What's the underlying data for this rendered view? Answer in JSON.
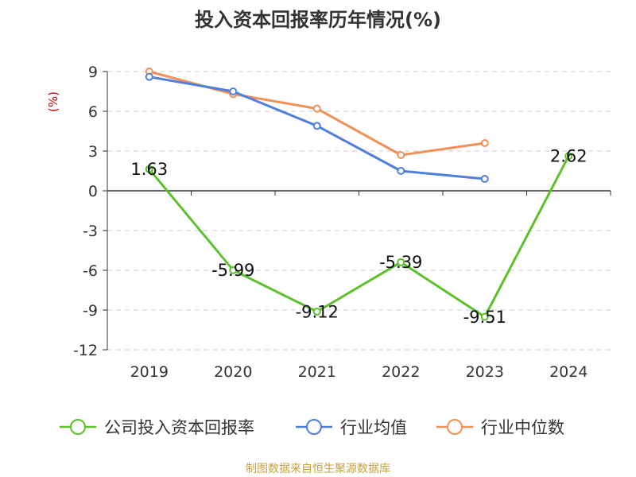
{
  "chart_data": {
    "type": "line",
    "title": "投入资本回报率历年情况(%)",
    "ylabel": "(%)",
    "categories": [
      "2019",
      "2020",
      "2021",
      "2022",
      "2023",
      "2024"
    ],
    "ylim": [
      -12,
      9
    ],
    "yticks": [
      9,
      6,
      3,
      0,
      -3,
      -6,
      -9,
      -12
    ],
    "grid": true,
    "legend_position": "bottom",
    "series": [
      {
        "name": "公司投入资本回报率",
        "color": "#5cc12a",
        "values": [
          1.63,
          -5.99,
          -9.12,
          -5.39,
          -9.51,
          2.62
        ],
        "show_labels": true
      },
      {
        "name": "行业均值",
        "color": "#4f7fdc",
        "values": [
          8.6,
          7.5,
          4.9,
          1.5,
          0.9,
          null
        ],
        "show_labels": false
      },
      {
        "name": "行业中位数",
        "color": "#f58f58",
        "values": [
          9.0,
          7.3,
          6.2,
          2.7,
          3.6,
          null
        ],
        "show_labels": false
      }
    ]
  },
  "source": "制图数据来自恒生聚源数据库"
}
